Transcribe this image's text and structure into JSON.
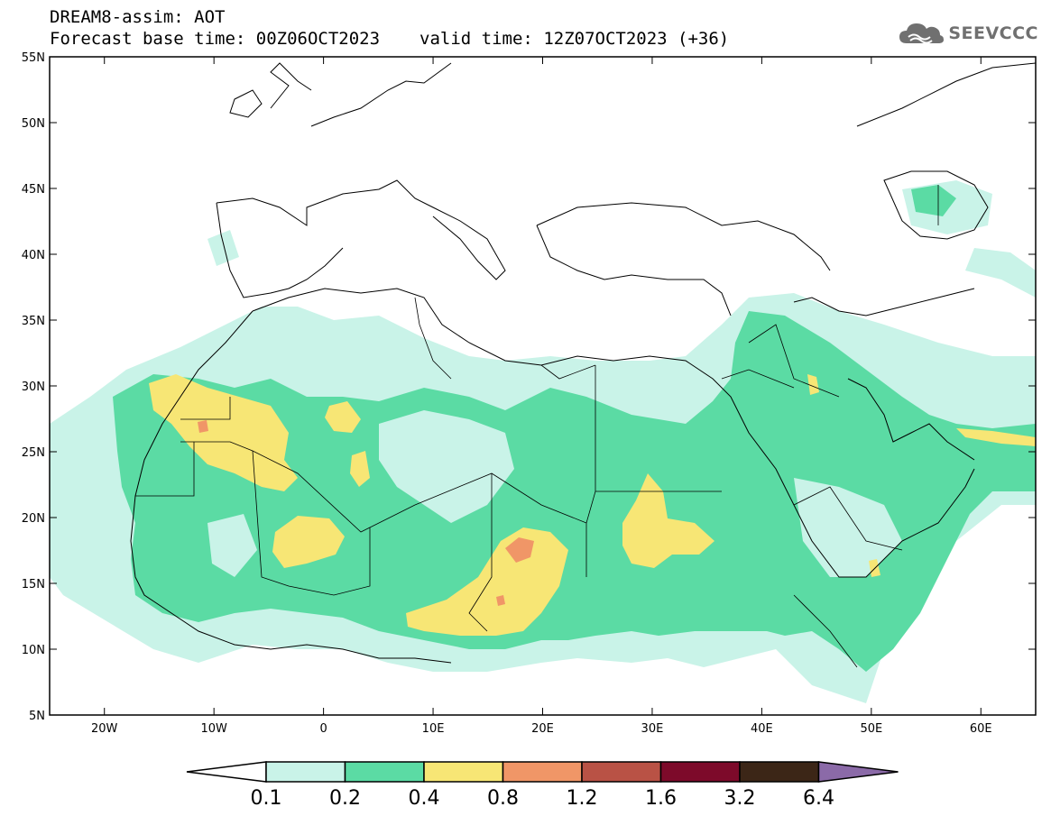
{
  "header": {
    "title": "DREAM8-assim: AOT",
    "base_time": "Forecast base time: 00Z06OCT2023",
    "valid_time": "valid time: 12Z07OCT2023 (+36)"
  },
  "logo": {
    "text": "SEEVCCC",
    "icon": "cloud-icon",
    "color": "#707070"
  },
  "map": {
    "lon_range": [
      -25,
      65
    ],
    "lat_range": [
      5,
      55
    ],
    "lon_ticks": [
      {
        "value": -20,
        "label": "20W"
      },
      {
        "value": -10,
        "label": "10W"
      },
      {
        "value": 0,
        "label": "0"
      },
      {
        "value": 10,
        "label": "10E"
      },
      {
        "value": 20,
        "label": "20E"
      },
      {
        "value": 30,
        "label": "30E"
      },
      {
        "value": 40,
        "label": "40E"
      },
      {
        "value": 50,
        "label": "50E"
      },
      {
        "value": 60,
        "label": "60E"
      }
    ],
    "lat_ticks": [
      {
        "value": 55,
        "label": "55N"
      },
      {
        "value": 50,
        "label": "50N"
      },
      {
        "value": 45,
        "label": "45N"
      },
      {
        "value": 40,
        "label": "40N"
      },
      {
        "value": 35,
        "label": "35N"
      },
      {
        "value": 30,
        "label": "30N"
      },
      {
        "value": 25,
        "label": "25N"
      },
      {
        "value": 20,
        "label": "20N"
      },
      {
        "value": 15,
        "label": "15N"
      },
      {
        "value": 10,
        "label": "10N"
      },
      {
        "value": 5,
        "label": "5N"
      }
    ]
  },
  "colorbar": {
    "labels": [
      "0.1",
      "0.2",
      "0.4",
      "0.8",
      "1.2",
      "1.6",
      "3.2",
      "6.4"
    ],
    "colors": [
      "#c9f3e8",
      "#5bdba4",
      "#f7e675",
      "#f09667",
      "#b95245",
      "#7d0a2a",
      "#3c2617"
    ],
    "under_color": "#ffffff",
    "over_color": "#8b6aa8"
  }
}
